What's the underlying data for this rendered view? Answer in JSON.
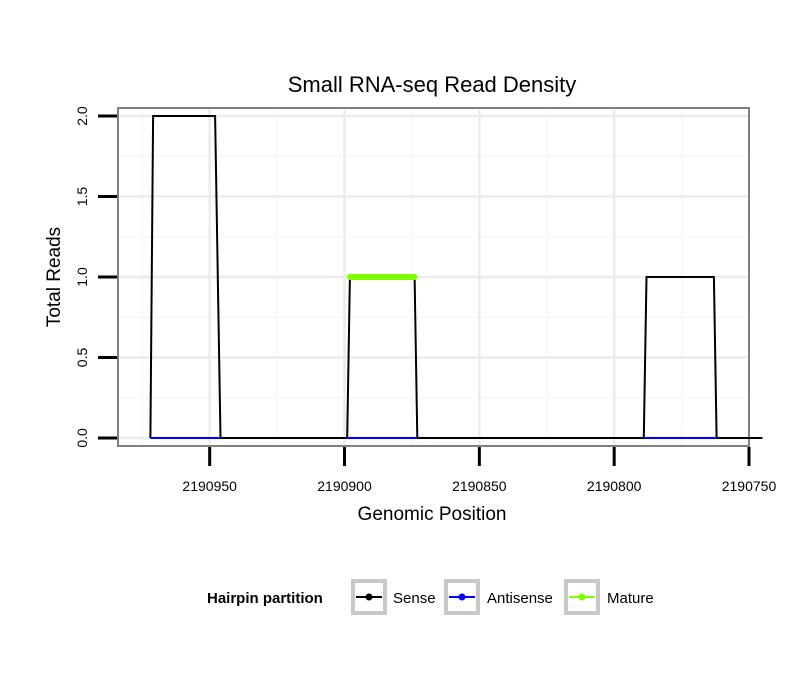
{
  "chart_data": {
    "type": "line",
    "title": "Small RNA-seq Read Density",
    "xlabel": "Genomic Position",
    "ylabel": "Total Reads",
    "xlim": [
      2190984,
      2190750
    ],
    "ylim": [
      -0.05,
      2.05
    ],
    "x_reversed": true,
    "grid": true,
    "x_ticks": [
      2190950,
      2190900,
      2190850,
      2190800,
      2190750
    ],
    "x_tick_labels": [
      "2190950",
      "2190900",
      "2190850",
      "2190800",
      "2190750"
    ],
    "y_ticks": [
      0.0,
      0.5,
      1.0,
      1.5,
      2.0
    ],
    "y_tick_labels": [
      "0.0",
      "0.5",
      "1.0",
      "1.5",
      "2.0"
    ],
    "series": [
      {
        "name": "Sense",
        "color": "#000000",
        "x": [
          2190972,
          2190971,
          2190948,
          2190946,
          2190899,
          2190898,
          2190874,
          2190873,
          2190789,
          2190788,
          2190763,
          2190762,
          2190745
        ],
        "y": [
          0,
          2,
          2,
          0,
          0,
          1,
          1,
          0,
          0,
          1,
          1,
          0,
          0
        ]
      },
      {
        "name": "Antisense",
        "color": "#0000ff",
        "segments": [
          {
            "x": [
              2190972,
              2190946
            ],
            "y": [
              0,
              0
            ]
          },
          {
            "x": [
              2190899,
              2190873
            ],
            "y": [
              0,
              0
            ]
          },
          {
            "x": [
              2190789,
              2190762
            ],
            "y": [
              0,
              0
            ]
          }
        ]
      },
      {
        "name": "Mature",
        "color": "#7fff00",
        "segments": [
          {
            "x": [
              2190898,
              2190874
            ],
            "y": [
              1,
              1
            ]
          }
        ]
      }
    ],
    "legend": {
      "title": "Hairpin partition",
      "position": "bottom",
      "entries": [
        "Sense",
        "Antisense",
        "Mature"
      ]
    }
  }
}
